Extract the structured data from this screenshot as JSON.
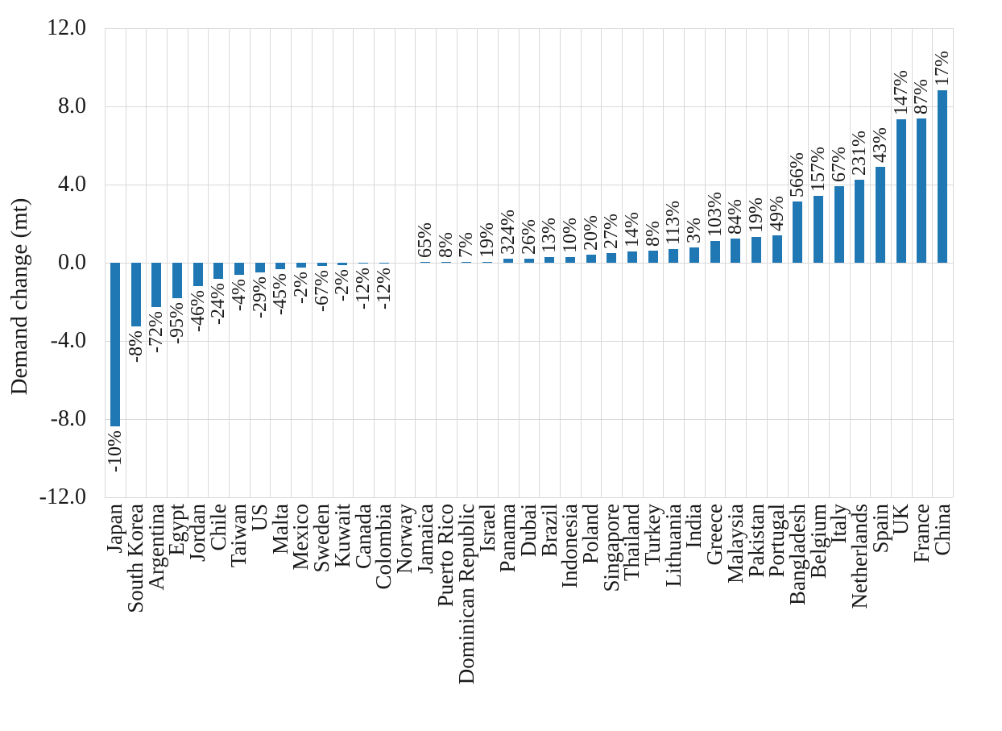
{
  "page": {
    "background": "#ffffff"
  },
  "chart_data": {
    "type": "bar",
    "title": "",
    "xlabel": "",
    "ylabel": "Demand change (mt)",
    "ylim": [
      -12,
      12
    ],
    "ytick_step": 4,
    "ytick_labels": [
      "12.0",
      "8.0",
      "4.0",
      "0.0",
      "-4.0",
      "-8.0",
      "-12.0"
    ],
    "legend": "none",
    "grid": {
      "horizontal": true,
      "vertical": true,
      "color": "#d9d9d9"
    },
    "bar_color": "#1f77b4",
    "data_label_rotation_deg": 90,
    "category_label_rotation_deg": 90,
    "points": [
      {
        "category": "Japan",
        "value_mt": -8.37,
        "label": "-10%"
      },
      {
        "category": "South Korea",
        "value_mt": -3.25,
        "label": "-8%"
      },
      {
        "category": "Argentina",
        "value_mt": -2.28,
        "label": "-72%"
      },
      {
        "category": "Egypt",
        "value_mt": -1.82,
        "label": "-95%"
      },
      {
        "category": "Jordan",
        "value_mt": -1.19,
        "label": "-46%"
      },
      {
        "category": "Chile",
        "value_mt": -0.81,
        "label": "-24%"
      },
      {
        "category": "Taiwan",
        "value_mt": -0.62,
        "label": "-4%"
      },
      {
        "category": "US",
        "value_mt": -0.49,
        "label": "-29%"
      },
      {
        "category": "Malta",
        "value_mt": -0.33,
        "label": "-45%"
      },
      {
        "category": "Mexico",
        "value_mt": -0.23,
        "label": "-2%"
      },
      {
        "category": "Sweden",
        "value_mt": -0.17,
        "label": "-67%"
      },
      {
        "category": "Kuwait",
        "value_mt": -0.11,
        "label": "-2%"
      },
      {
        "category": "Canada",
        "value_mt": -0.05,
        "label": "-12%"
      },
      {
        "category": "Colombia",
        "value_mt": -0.04,
        "label": "-12%"
      },
      {
        "category": "Norway",
        "value_mt": 0,
        "label": null
      },
      {
        "category": "Jamaica",
        "value_mt": 0.04,
        "label": "65%"
      },
      {
        "category": "Puerto Rico",
        "value_mt": 0.04,
        "label": "8%"
      },
      {
        "category": "Dominican Republic",
        "value_mt": 0.05,
        "label": "7%"
      },
      {
        "category": "Israel",
        "value_mt": 0.06,
        "label": "19%"
      },
      {
        "category": "Panama",
        "value_mt": 0.22,
        "label": "324%"
      },
      {
        "category": "Dubai",
        "value_mt": 0.2,
        "label": "26%"
      },
      {
        "category": "Brazil",
        "value_mt": 0.29,
        "label": "13%"
      },
      {
        "category": "Indonesia",
        "value_mt": 0.28,
        "label": "10%"
      },
      {
        "category": "Poland",
        "value_mt": 0.41,
        "label": "20%"
      },
      {
        "category": "Singapore",
        "value_mt": 0.5,
        "label": "27%"
      },
      {
        "category": "Thailand",
        "value_mt": 0.56,
        "label": "14%"
      },
      {
        "category": "Turkey",
        "value_mt": 0.63,
        "label": "8%"
      },
      {
        "category": "Lithuania",
        "value_mt": 0.72,
        "label": "113%"
      },
      {
        "category": "India",
        "value_mt": 0.78,
        "label": "3%"
      },
      {
        "category": "Greece",
        "value_mt": 1.12,
        "label": "103%"
      },
      {
        "category": "Malaysia",
        "value_mt": 1.22,
        "label": "84%"
      },
      {
        "category": "Pakistan",
        "value_mt": 1.32,
        "label": "19%"
      },
      {
        "category": "Portugal",
        "value_mt": 1.42,
        "label": "49%"
      },
      {
        "category": "Bangladesh",
        "value_mt": 3.15,
        "label": "566%"
      },
      {
        "category": "Belgium",
        "value_mt": 3.42,
        "label": "157%"
      },
      {
        "category": "Italy",
        "value_mt": 3.92,
        "label": "67%"
      },
      {
        "category": "Netherlands",
        "value_mt": 4.25,
        "label": "231%"
      },
      {
        "category": "Spain",
        "value_mt": 4.92,
        "label": "43%"
      },
      {
        "category": "UK",
        "value_mt": 7.34,
        "label": "147%"
      },
      {
        "category": "France",
        "value_mt": 7.38,
        "label": "87%"
      },
      {
        "category": "China",
        "value_mt": 8.82,
        "label": "17%"
      }
    ]
  }
}
